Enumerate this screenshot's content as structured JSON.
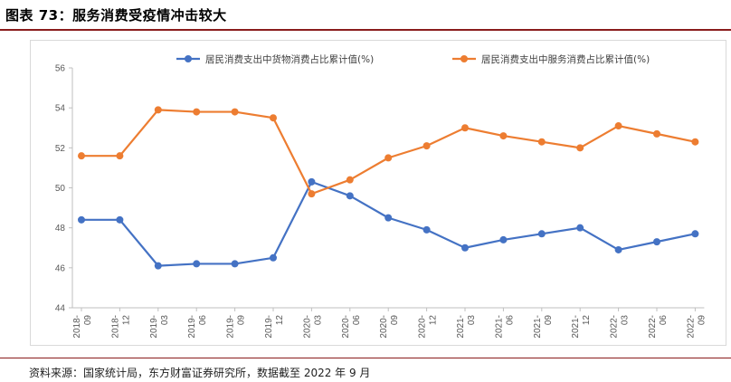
{
  "figure": {
    "title": "图表 73：服务消费受疫情冲击较大",
    "source": "资料来源：国家统计局，东方财富证券研究所，数据截至 2022 年 9 月"
  },
  "chart_data": {
    "type": "line",
    "categories": [
      [
        "2018-",
        "09"
      ],
      [
        "2018-",
        "12"
      ],
      [
        "2019-",
        "03"
      ],
      [
        "2019-",
        "06"
      ],
      [
        "2019-",
        "09"
      ],
      [
        "2019-",
        "12"
      ],
      [
        "2020-",
        "03"
      ],
      [
        "2020-",
        "06"
      ],
      [
        "2020-",
        "09"
      ],
      [
        "2020-",
        "12"
      ],
      [
        "2021-",
        "03"
      ],
      [
        "2021-",
        "06"
      ],
      [
        "2021-",
        "09"
      ],
      [
        "2021-",
        "12"
      ],
      [
        "2022-",
        "03"
      ],
      [
        "2022-",
        "06"
      ],
      [
        "2022-",
        "09"
      ]
    ],
    "series": [
      {
        "name": "居民消费支出中货物消费占比累计值(%)",
        "color": "#4472c4",
        "values": [
          48.4,
          48.4,
          46.1,
          46.2,
          46.2,
          46.5,
          50.3,
          49.6,
          48.5,
          47.9,
          47.0,
          47.4,
          47.7,
          48.0,
          46.9,
          47.3,
          47.7
        ]
      },
      {
        "name": "居民消费支出中服务消费占比累计值(%)",
        "color": "#ed7d31",
        "values": [
          51.6,
          51.6,
          53.9,
          53.8,
          53.8,
          53.5,
          49.7,
          50.4,
          51.5,
          52.1,
          53.0,
          52.6,
          52.3,
          52.0,
          53.1,
          52.7,
          52.3
        ]
      }
    ],
    "ylim": [
      44,
      56
    ],
    "yticks": [
      "44",
      "46",
      "48",
      "50",
      "52",
      "54",
      "56"
    ],
    "legend": "top",
    "grid": false
  }
}
